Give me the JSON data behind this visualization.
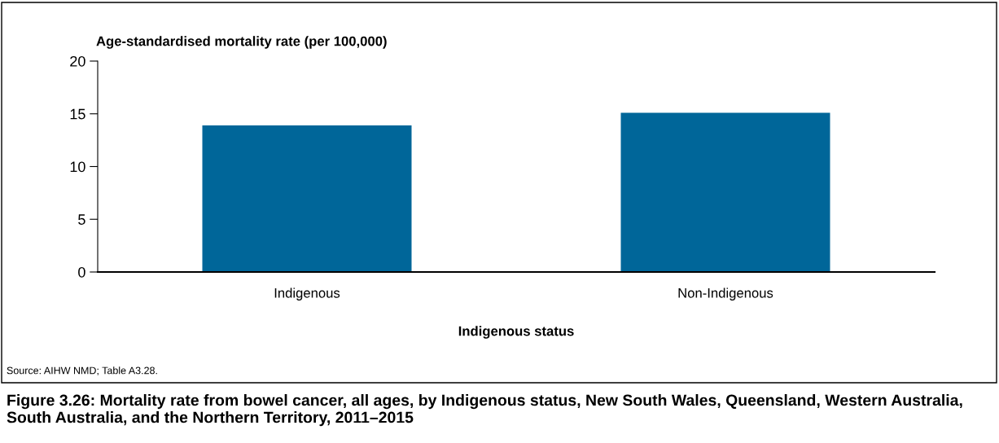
{
  "chart_data": {
    "type": "bar",
    "title": "Figure 3.26: Mortality rate from bowel cancer, all ages, by Indigenous status, New South Wales, Queensland, Western Australia, South Australia, and the Northern Territory, 2011–2015",
    "ylabel": "Age-standardised mortality rate (per 100,000)",
    "xlabel": "Indigenous status",
    "categories": [
      "Indigenous",
      "Non-Indigenous"
    ],
    "values": [
      13.9,
      15.1
    ],
    "color": "#006699",
    "ylim": [
      0,
      20
    ],
    "yticks": [
      0,
      5,
      10,
      15,
      20
    ],
    "grid": false,
    "annotations": [
      "Source: AIHW NMD; Table A3.28."
    ]
  }
}
